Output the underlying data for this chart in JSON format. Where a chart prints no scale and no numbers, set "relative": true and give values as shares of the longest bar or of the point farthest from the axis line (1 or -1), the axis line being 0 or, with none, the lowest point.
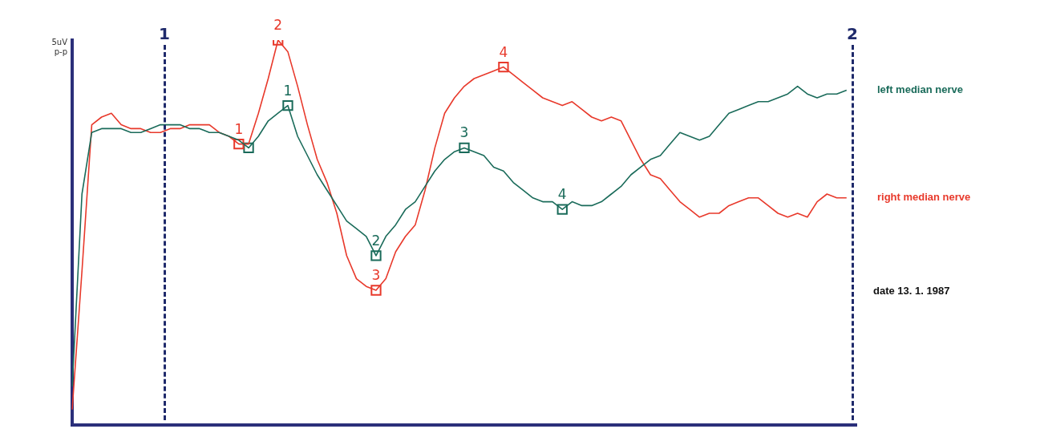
{
  "chart_data": {
    "type": "line",
    "ylabel": "5uV p-p",
    "relative": true,
    "categories": [
      null,
      null,
      null,
      null,
      null,
      null,
      null,
      null,
      null,
      null,
      null,
      null,
      null,
      null,
      null,
      null,
      null,
      null,
      null,
      null,
      null,
      null,
      null,
      null,
      null,
      null,
      null,
      null,
      null,
      null,
      null,
      null,
      null,
      null,
      null,
      null,
      null,
      null,
      null,
      null,
      null,
      null,
      null,
      null,
      null,
      null,
      null,
      null,
      null,
      null,
      null,
      null,
      null,
      null,
      null,
      null,
      null,
      null,
      null,
      null,
      null,
      null,
      null,
      null,
      null,
      null,
      null,
      null,
      null,
      null,
      null,
      null,
      null,
      null,
      null,
      null,
      null,
      null,
      null,
      null,
      null
    ],
    "grid": false,
    "legend": false,
    "marker": "none",
    "annotations": [
      "1",
      "2",
      "date 13. 1. 1987"
    ],
    "series": [
      {
        "name": "left median nerve",
        "color": "#1a6b5a",
        "values": [
          0.1,
          0.6,
          0.76,
          0.77,
          0.77,
          0.77,
          0.76,
          0.76,
          0.77,
          0.78,
          0.78,
          0.78,
          0.77,
          0.77,
          0.76,
          0.76,
          0.75,
          0.74,
          0.72,
          0.75,
          0.79,
          0.81,
          0.83,
          0.75,
          0.7,
          0.65,
          0.61,
          0.57,
          0.53,
          0.51,
          0.49,
          0.44,
          0.49,
          0.52,
          0.56,
          0.58,
          0.62,
          0.66,
          0.69,
          0.71,
          0.72,
          0.71,
          0.7,
          0.67,
          0.66,
          0.63,
          0.61,
          0.59,
          0.58,
          0.58,
          0.56,
          0.58,
          0.57,
          0.57,
          0.58,
          0.6,
          0.62,
          0.65,
          0.67,
          0.69,
          0.7,
          0.73,
          0.76,
          0.75,
          0.74,
          0.75,
          0.78,
          0.81,
          0.82,
          0.83,
          0.84,
          0.84,
          0.85,
          0.86,
          0.88,
          0.86,
          0.85,
          0.86,
          0.86,
          0.87,
          null
        ]
      },
      {
        "name": "right median nerve",
        "color": "#e8392b",
        "values": [
          0.04,
          0.4,
          0.78,
          0.8,
          0.81,
          0.78,
          0.77,
          0.77,
          0.76,
          0.76,
          0.77,
          0.77,
          0.78,
          0.78,
          0.78,
          0.76,
          0.75,
          0.73,
          0.73,
          0.81,
          0.9,
          1,
          0.97,
          0.88,
          0.78,
          0.69,
          0.63,
          0.55,
          0.44,
          0.38,
          0.36,
          0.35,
          0.38,
          0.45,
          0.49,
          0.52,
          0.61,
          0.72,
          0.81,
          0.85,
          0.88,
          0.9,
          0.91,
          0.92,
          0.93,
          0.91,
          0.89,
          0.87,
          0.85,
          0.84,
          0.83,
          0.84,
          0.82,
          0.8,
          0.79,
          0.8,
          0.79,
          0.74,
          0.69,
          0.65,
          0.64,
          0.61,
          0.58,
          0.56,
          0.54,
          0.55,
          0.55,
          0.57,
          0.58,
          0.59,
          0.59,
          0.57,
          0.55,
          0.54,
          0.55,
          0.54,
          0.58,
          0.6,
          0.59,
          0.59,
          null
        ]
      },
      {
        "name": "1",
        "marker": "square",
        "color": "#e8392b",
        "values": [
          null,
          null,
          null,
          null,
          null,
          null,
          null,
          null,
          null,
          null,
          null,
          null,
          null,
          null,
          null,
          null,
          null,
          0.73,
          null,
          null,
          null,
          null,
          null,
          null,
          null,
          null,
          null,
          null,
          null,
          null,
          null,
          null,
          null,
          null,
          null,
          null,
          null,
          null,
          null,
          null,
          null,
          null,
          null,
          null,
          null,
          null,
          null,
          null,
          null,
          null,
          null,
          null,
          null,
          null,
          null,
          null,
          null,
          null,
          null,
          null,
          null,
          null,
          null,
          null,
          null,
          null,
          null,
          null,
          null,
          null,
          null,
          null,
          null,
          null,
          null,
          null,
          null,
          null,
          null,
          null,
          null
        ]
      },
      {
        "name": "2",
        "marker": "square",
        "color": "#e8392b",
        "values": [
          null,
          null,
          null,
          null,
          null,
          null,
          null,
          null,
          null,
          null,
          null,
          null,
          null,
          null,
          null,
          null,
          null,
          null,
          null,
          null,
          null,
          1,
          null,
          null,
          null,
          null,
          null,
          null,
          null,
          null,
          null,
          null,
          null,
          null,
          null,
          null,
          null,
          null,
          null,
          null,
          null,
          null,
          null,
          null,
          null,
          null,
          null,
          null,
          null,
          null,
          null,
          null,
          null,
          null,
          null,
          null,
          null,
          null,
          null,
          null,
          null,
          null,
          null,
          null,
          null,
          null,
          null,
          null,
          null,
          null,
          null,
          null,
          null,
          null,
          null,
          null,
          null,
          null,
          null,
          null,
          null
        ]
      },
      {
        "name": "3",
        "marker": "square",
        "color": "#e8392b",
        "values": [
          null,
          null,
          null,
          null,
          null,
          null,
          null,
          null,
          null,
          null,
          null,
          null,
          null,
          null,
          null,
          null,
          null,
          null,
          null,
          null,
          null,
          null,
          null,
          null,
          null,
          null,
          null,
          null,
          null,
          null,
          null,
          0.35,
          null,
          null,
          null,
          null,
          null,
          null,
          null,
          null,
          null,
          null,
          null,
          null,
          null,
          null,
          null,
          null,
          null,
          null,
          null,
          null,
          null,
          null,
          null,
          null,
          null,
          null,
          null,
          null,
          null,
          null,
          null,
          null,
          null,
          null,
          null,
          null,
          null,
          null,
          null,
          null,
          null,
          null,
          null,
          null,
          null,
          null,
          null,
          null,
          null
        ]
      },
      {
        "name": "4",
        "marker": "square",
        "color": "#e8392b",
        "values": [
          null,
          null,
          null,
          null,
          null,
          null,
          null,
          null,
          null,
          null,
          null,
          null,
          null,
          null,
          null,
          null,
          null,
          null,
          null,
          null,
          null,
          null,
          null,
          null,
          null,
          null,
          null,
          null,
          null,
          null,
          null,
          null,
          null,
          null,
          null,
          null,
          null,
          null,
          null,
          null,
          null,
          null,
          null,
          null,
          0.93,
          null,
          null,
          null,
          null,
          null,
          null,
          null,
          null,
          null,
          null,
          null,
          null,
          null,
          null,
          null,
          null,
          null,
          null,
          null,
          null,
          null,
          null,
          null,
          null,
          null,
          null,
          null,
          null,
          null,
          null,
          null,
          null,
          null,
          null,
          null,
          null
        ]
      },
      {
        "marker": "square",
        "color": "#1a6b5a",
        "values": [
          null,
          null,
          null,
          null,
          null,
          null,
          null,
          null,
          null,
          null,
          null,
          null,
          null,
          null,
          null,
          null,
          null,
          null,
          0.72,
          null,
          null,
          null,
          null,
          null,
          null,
          null,
          null,
          null,
          null,
          null,
          null,
          null,
          null,
          null,
          null,
          null,
          null,
          null,
          null,
          null,
          null,
          null,
          null,
          null,
          null,
          null,
          null,
          null,
          null,
          null,
          null,
          null,
          null,
          null,
          null,
          null,
          null,
          null,
          null,
          null,
          null,
          null,
          null,
          null,
          null,
          null,
          null,
          null,
          null,
          null,
          null,
          null,
          null,
          null,
          null,
          null,
          null,
          null,
          null,
          null,
          null
        ]
      },
      {
        "name": "1",
        "marker": "square",
        "color": "#1a6b5a",
        "values": [
          null,
          null,
          null,
          null,
          null,
          null,
          null,
          null,
          null,
          null,
          null,
          null,
          null,
          null,
          null,
          null,
          null,
          null,
          null,
          null,
          null,
          null,
          0.83,
          null,
          null,
          null,
          null,
          null,
          null,
          null,
          null,
          null,
          null,
          null,
          null,
          null,
          null,
          null,
          null,
          null,
          null,
          null,
          null,
          null,
          null,
          null,
          null,
          null,
          null,
          null,
          null,
          null,
          null,
          null,
          null,
          null,
          null,
          null,
          null,
          null,
          null,
          null,
          null,
          null,
          null,
          null,
          null,
          null,
          null,
          null,
          null,
          null,
          null,
          null,
          null,
          null,
          null,
          null,
          null,
          null,
          null
        ]
      },
      {
        "name": "2",
        "marker": "square",
        "color": "#1a6b5a",
        "values": [
          null,
          null,
          null,
          null,
          null,
          null,
          null,
          null,
          null,
          null,
          null,
          null,
          null,
          null,
          null,
          null,
          null,
          null,
          null,
          null,
          null,
          null,
          null,
          null,
          null,
          null,
          null,
          null,
          null,
          null,
          null,
          0.44,
          null,
          null,
          null,
          null,
          null,
          null,
          null,
          null,
          null,
          null,
          null,
          null,
          null,
          null,
          null,
          null,
          null,
          null,
          null,
          null,
          null,
          null,
          null,
          null,
          null,
          null,
          null,
          null,
          null,
          null,
          null,
          null,
          null,
          null,
          null,
          null,
          null,
          null,
          null,
          null,
          null,
          null,
          null,
          null,
          null,
          null,
          null,
          null,
          null
        ]
      },
      {
        "name": "3",
        "marker": "square",
        "color": "#1a6b5a",
        "values": [
          null,
          null,
          null,
          null,
          null,
          null,
          null,
          null,
          null,
          null,
          null,
          null,
          null,
          null,
          null,
          null,
          null,
          null,
          null,
          null,
          null,
          null,
          null,
          null,
          null,
          null,
          null,
          null,
          null,
          null,
          null,
          null,
          null,
          null,
          null,
          null,
          null,
          null,
          null,
          null,
          0.72,
          null,
          null,
          null,
          null,
          null,
          null,
          null,
          null,
          null,
          null,
          null,
          null,
          null,
          null,
          null,
          null,
          null,
          null,
          null,
          null,
          null,
          null,
          null,
          null,
          null,
          null,
          null,
          null,
          null,
          null,
          null,
          null,
          null,
          null,
          null,
          null,
          null,
          null,
          null,
          null
        ]
      },
      {
        "name": "4",
        "marker": "square",
        "color": "#1a6b5a",
        "values": [
          null,
          null,
          null,
          null,
          null,
          null,
          null,
          null,
          null,
          null,
          null,
          null,
          null,
          null,
          null,
          null,
          null,
          null,
          null,
          null,
          null,
          null,
          null,
          null,
          null,
          null,
          null,
          null,
          null,
          null,
          null,
          null,
          null,
          null,
          null,
          null,
          null,
          null,
          null,
          null,
          null,
          null,
          null,
          null,
          null,
          null,
          null,
          null,
          null,
          null,
          0.56,
          null,
          null,
          null,
          null,
          null,
          null,
          null,
          null,
          null,
          null,
          null,
          null,
          null,
          null,
          null,
          null,
          null,
          null,
          null,
          null,
          null,
          null,
          null,
          null,
          null,
          null,
          null,
          null,
          null,
          null
        ]
      }
    ]
  }
}
